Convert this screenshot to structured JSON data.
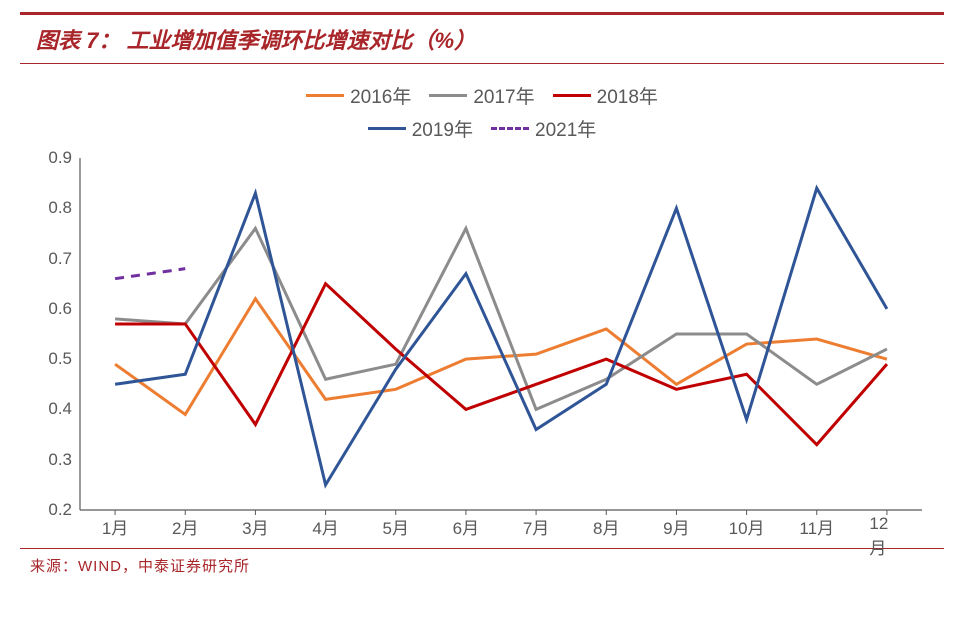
{
  "title": "图表 7：  工业增加值季调环比增速对比（%）",
  "source": "来源：WIND，中泰证券研究所",
  "chart": {
    "type": "line",
    "background_color": "#ffffff",
    "text_color": "#595959",
    "accent_color": "#a8252a",
    "title_fontsize": 22,
    "label_fontsize": 17,
    "legend_fontsize": 19,
    "line_width": 3,
    "categories": [
      "1月",
      "2月",
      "3月",
      "4月",
      "5月",
      "6月",
      "7月",
      "8月",
      "9月",
      "10月",
      "11月",
      "12月"
    ],
    "ylim": [
      0.2,
      0.9
    ],
    "ytick_step": 0.1,
    "yticks": [
      0.2,
      0.3,
      0.4,
      0.5,
      0.6,
      0.7,
      0.8,
      0.9
    ],
    "x_tick_length": 5,
    "series": [
      {
        "name": "2016年",
        "color": "#ed7d31",
        "style": "solid",
        "values": [
          0.49,
          0.39,
          0.62,
          0.42,
          0.44,
          0.5,
          0.51,
          0.56,
          0.45,
          0.53,
          0.54,
          0.5
        ]
      },
      {
        "name": "2017年",
        "color": "#8c8c8c",
        "style": "solid",
        "values": [
          0.58,
          0.57,
          0.76,
          0.46,
          0.49,
          0.76,
          0.4,
          0.46,
          0.55,
          0.55,
          0.45,
          0.52
        ]
      },
      {
        "name": "2018年",
        "color": "#c00000",
        "style": "solid",
        "values": [
          0.57,
          0.57,
          0.37,
          0.65,
          0.52,
          0.4,
          0.45,
          0.5,
          0.44,
          0.47,
          0.33,
          0.49
        ]
      },
      {
        "name": "2019年",
        "color": "#2f5597",
        "style": "solid",
        "values": [
          0.45,
          0.47,
          0.83,
          0.25,
          0.48,
          0.67,
          0.36,
          0.45,
          0.8,
          0.38,
          0.84,
          0.6
        ]
      },
      {
        "name": "2021年",
        "color": "#7030a0",
        "style": "dashed",
        "values": [
          0.66,
          0.68
        ]
      }
    ],
    "legend_rows": [
      [
        "2016年",
        "2017年",
        "2018年"
      ],
      [
        "2019年",
        "2021年"
      ]
    ]
  }
}
